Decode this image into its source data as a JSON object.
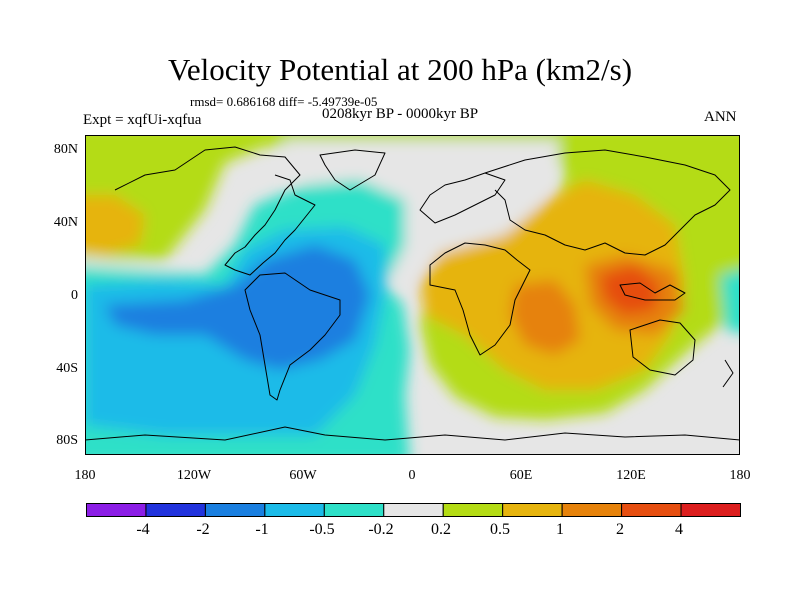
{
  "figure": {
    "title": "Velocity Potential at 200 hPa (km2/s)",
    "stats_label": "rmsd= 0.686168 diff= -5.49739e-05",
    "experiment_label": "Expt = xqfUi-xqfua",
    "period_label": "0208kyr BP - 0000kyr BP",
    "season_label": "ANN"
  },
  "axes": {
    "lat_ticks": [
      "80N",
      "40N",
      "0",
      "40S",
      "80S"
    ],
    "lon_ticks": [
      "180",
      "120W",
      "60W",
      "0",
      "60E",
      "120E",
      "180"
    ]
  },
  "colorbar": {
    "colors": [
      "#8c1ee6",
      "#2233dd",
      "#1a7fe0",
      "#1cbbe8",
      "#2ee0c8",
      "#e6e6e6",
      "#b4dc14",
      "#e6b40e",
      "#e6820a",
      "#e64e10",
      "#dc1e1e"
    ],
    "tick_labels": [
      "-4",
      "-2",
      "-1",
      "-0.5",
      "-0.2",
      "0.2",
      "0.5",
      "1",
      "2",
      "4"
    ]
  },
  "map_colors": {
    "neutral": "#e6e6e6",
    "pos_weak": "#b4dc14",
    "pos_mid": "#e6b40e",
    "pos_strong": "#e6820a",
    "pos_peak": "#e64e10",
    "neg_weak": "#2ee0c8",
    "neg_mid": "#1cbbe8",
    "neg_strong": "#1a7fe0",
    "coast": "#000000"
  }
}
